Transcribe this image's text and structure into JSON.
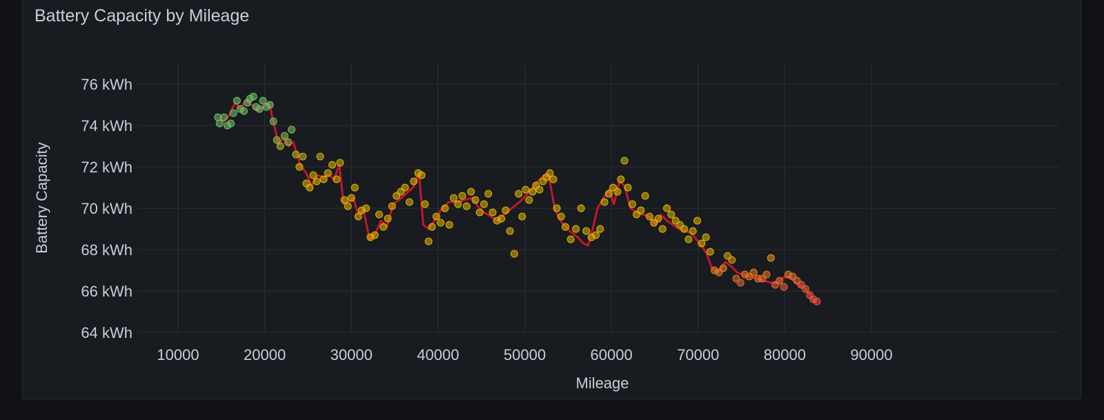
{
  "panel": {
    "title": "Battery Capacity by Mileage"
  },
  "colors": {
    "background": "#181b1f",
    "grid": "#2c2f35",
    "trend_line": "#c4162a",
    "point_high": "#73bf69",
    "point_mid": "#e0b400",
    "point_low": "#e8563f"
  },
  "chart_data": {
    "type": "scatter",
    "title": "Battery Capacity by Mileage",
    "xlabel": "Mileage",
    "ylabel": "Battery Capacity",
    "xlim": [
      7000,
      91000
    ],
    "ylim": [
      63.5,
      77
    ],
    "x_ticks": [
      10000,
      20000,
      30000,
      40000,
      50000,
      60000,
      70000,
      80000,
      90000
    ],
    "x_tick_labels": [
      "10000",
      "20000",
      "30000",
      "40000",
      "50000",
      "60000",
      "70000",
      "80000",
      "90000"
    ],
    "y_ticks": [
      64,
      66,
      68,
      70,
      72,
      74,
      76
    ],
    "y_tick_labels": [
      "64 kWh",
      "66 kWh",
      "68 kWh",
      "70 kWh",
      "72 kWh",
      "74 kWh",
      "76 kWh"
    ],
    "grid": true,
    "legend": "none",
    "series": [
      {
        "type": "line",
        "x": [
          14800,
          15300,
          15900,
          16600,
          17200,
          17800,
          18500,
          19200,
          19800,
          20500,
          21100,
          21600,
          22200,
          22800,
          23300,
          24100,
          24800,
          25400,
          26100,
          26800,
          27400,
          28000,
          28600,
          29100,
          29700,
          30200,
          30800,
          31400,
          32100,
          32800,
          33400,
          34100,
          34800,
          35500,
          36300,
          37100,
          37800,
          38300,
          38900,
          39600,
          40300,
          41200,
          42100,
          43000,
          43900,
          44600,
          45300,
          46100,
          46800,
          47600,
          48500,
          49400,
          50100,
          50800,
          51500,
          52200,
          52800,
          53500,
          54300,
          55200,
          56100,
          56800,
          57300,
          57900,
          58400,
          59100,
          59700,
          60300,
          60900,
          61500,
          62200,
          62900,
          63600,
          64400,
          65100,
          65700,
          66400,
          67100,
          67800,
          68500,
          69200,
          69800,
          70400,
          71000,
          71600,
          72300,
          73100,
          73800,
          74500,
          75200,
          76000,
          76800,
          77600,
          78400,
          79200,
          80000,
          80800,
          81500,
          82200,
          82800,
          83200,
          83600
        ],
        "y": [
          74.3,
          74.2,
          74.5,
          75.1,
          74.8,
          75.2,
          75.0,
          74.7,
          74.9,
          75.1,
          74.0,
          73.1,
          73.4,
          73.0,
          73.2,
          72.1,
          71.7,
          71.1,
          71.6,
          71.5,
          71.6,
          71.4,
          72.1,
          70.2,
          70.3,
          70.5,
          69.7,
          69.9,
          68.5,
          68.8,
          69.4,
          69.1,
          70.2,
          70.4,
          70.7,
          71.0,
          71.7,
          69.2,
          69.0,
          69.4,
          69.9,
          70.3,
          70.3,
          70.4,
          70.5,
          70.1,
          69.8,
          69.6,
          69.4,
          69.7,
          70.0,
          70.3,
          70.6,
          70.9,
          71.3,
          71.6,
          71.5,
          69.9,
          69.3,
          68.9,
          68.6,
          68.3,
          68.2,
          69.1,
          70.0,
          70.5,
          70.9,
          70.2,
          71.3,
          71.1,
          70.0,
          69.8,
          69.7,
          69.6,
          69.2,
          69.7,
          69.4,
          69.2,
          69.0,
          68.9,
          68.8,
          68.5,
          68.2,
          67.8,
          67.1,
          66.9,
          67.4,
          67.2,
          66.9,
          66.8,
          66.7,
          66.6,
          66.5,
          66.4,
          66.4,
          66.7,
          66.6,
          66.3,
          66.2,
          65.9,
          65.6,
          65.5
        ]
      },
      {
        "type": "scatter",
        "x": [
          14600,
          14800,
          15300,
          15700,
          16100,
          16400,
          16800,
          17200,
          17600,
          18000,
          18300,
          18700,
          19000,
          19400,
          19800,
          20200,
          20600,
          21000,
          21400,
          21800,
          22300,
          22700,
          23100,
          23600,
          24000,
          24400,
          24800,
          25200,
          25600,
          26000,
          26400,
          26800,
          27300,
          27800,
          28300,
          28700,
          29200,
          29600,
          30000,
          30400,
          30800,
          31200,
          31700,
          32200,
          32700,
          33200,
          33700,
          34200,
          34700,
          35200,
          35700,
          36200,
          36700,
          37200,
          37700,
          38100,
          38500,
          38900,
          39300,
          39800,
          40300,
          40800,
          41300,
          41800,
          42300,
          42800,
          43300,
          43800,
          44300,
          44800,
          45300,
          45800,
          46300,
          46800,
          47300,
          47800,
          48300,
          48800,
          49300,
          49700,
          50100,
          50500,
          50900,
          51300,
          51700,
          52100,
          52500,
          52900,
          53300,
          53700,
          54200,
          54700,
          55300,
          55900,
          56500,
          57100,
          57700,
          58200,
          58700,
          59200,
          59700,
          60200,
          60700,
          61100,
          61500,
          61900,
          62400,
          62900,
          63400,
          63900,
          64400,
          64900,
          65400,
          65900,
          66400,
          66900,
          67400,
          67900,
          68400,
          68900,
          69400,
          69900,
          70400,
          70900,
          71400,
          71900,
          72400,
          72900,
          73400,
          73900,
          74400,
          74900,
          75400,
          75900,
          76400,
          76900,
          77400,
          77900,
          78400,
          78900,
          79400,
          79900,
          80400,
          80900,
          81400,
          81900,
          82400,
          82900,
          83300,
          83700
        ],
        "y": [
          74.4,
          74.1,
          74.4,
          74.0,
          74.1,
          74.6,
          75.2,
          74.8,
          74.7,
          75.1,
          75.3,
          75.4,
          74.9,
          74.8,
          75.2,
          74.9,
          75.0,
          74.2,
          73.3,
          73.0,
          73.5,
          73.2,
          73.8,
          72.6,
          72.0,
          72.5,
          71.2,
          71.0,
          71.6,
          71.3,
          72.5,
          71.4,
          71.7,
          72.1,
          71.4,
          72.2,
          70.4,
          70.1,
          70.5,
          71.0,
          69.6,
          69.9,
          70.0,
          68.6,
          68.7,
          69.7,
          69.1,
          69.5,
          70.1,
          70.6,
          70.8,
          71.0,
          70.3,
          71.3,
          71.7,
          71.6,
          70.2,
          68.4,
          69.1,
          69.6,
          69.3,
          70.0,
          69.2,
          70.5,
          70.2,
          70.6,
          70.1,
          70.8,
          70.4,
          69.8,
          70.2,
          70.7,
          69.8,
          69.4,
          69.5,
          69.9,
          68.9,
          67.8,
          70.7,
          69.6,
          70.9,
          70.4,
          70.8,
          71.1,
          70.9,
          71.3,
          71.5,
          71.7,
          71.4,
          70.0,
          69.6,
          69.1,
          68.5,
          69.0,
          70.0,
          68.9,
          68.6,
          68.7,
          69.0,
          70.3,
          70.7,
          71.0,
          70.8,
          71.4,
          72.3,
          71.0,
          70.2,
          69.7,
          69.9,
          70.6,
          69.6,
          69.3,
          69.5,
          69.0,
          70.0,
          69.7,
          69.4,
          69.2,
          69.0,
          68.5,
          68.9,
          69.4,
          68.3,
          68.6,
          67.9,
          67.0,
          66.9,
          67.1,
          67.7,
          67.5,
          66.6,
          66.4,
          66.8,
          66.7,
          66.9,
          66.6,
          66.6,
          66.8,
          67.6,
          66.3,
          66.5,
          66.2,
          66.8,
          66.7,
          66.5,
          66.3,
          66.1,
          65.8,
          65.6,
          65.5
        ]
      }
    ]
  }
}
